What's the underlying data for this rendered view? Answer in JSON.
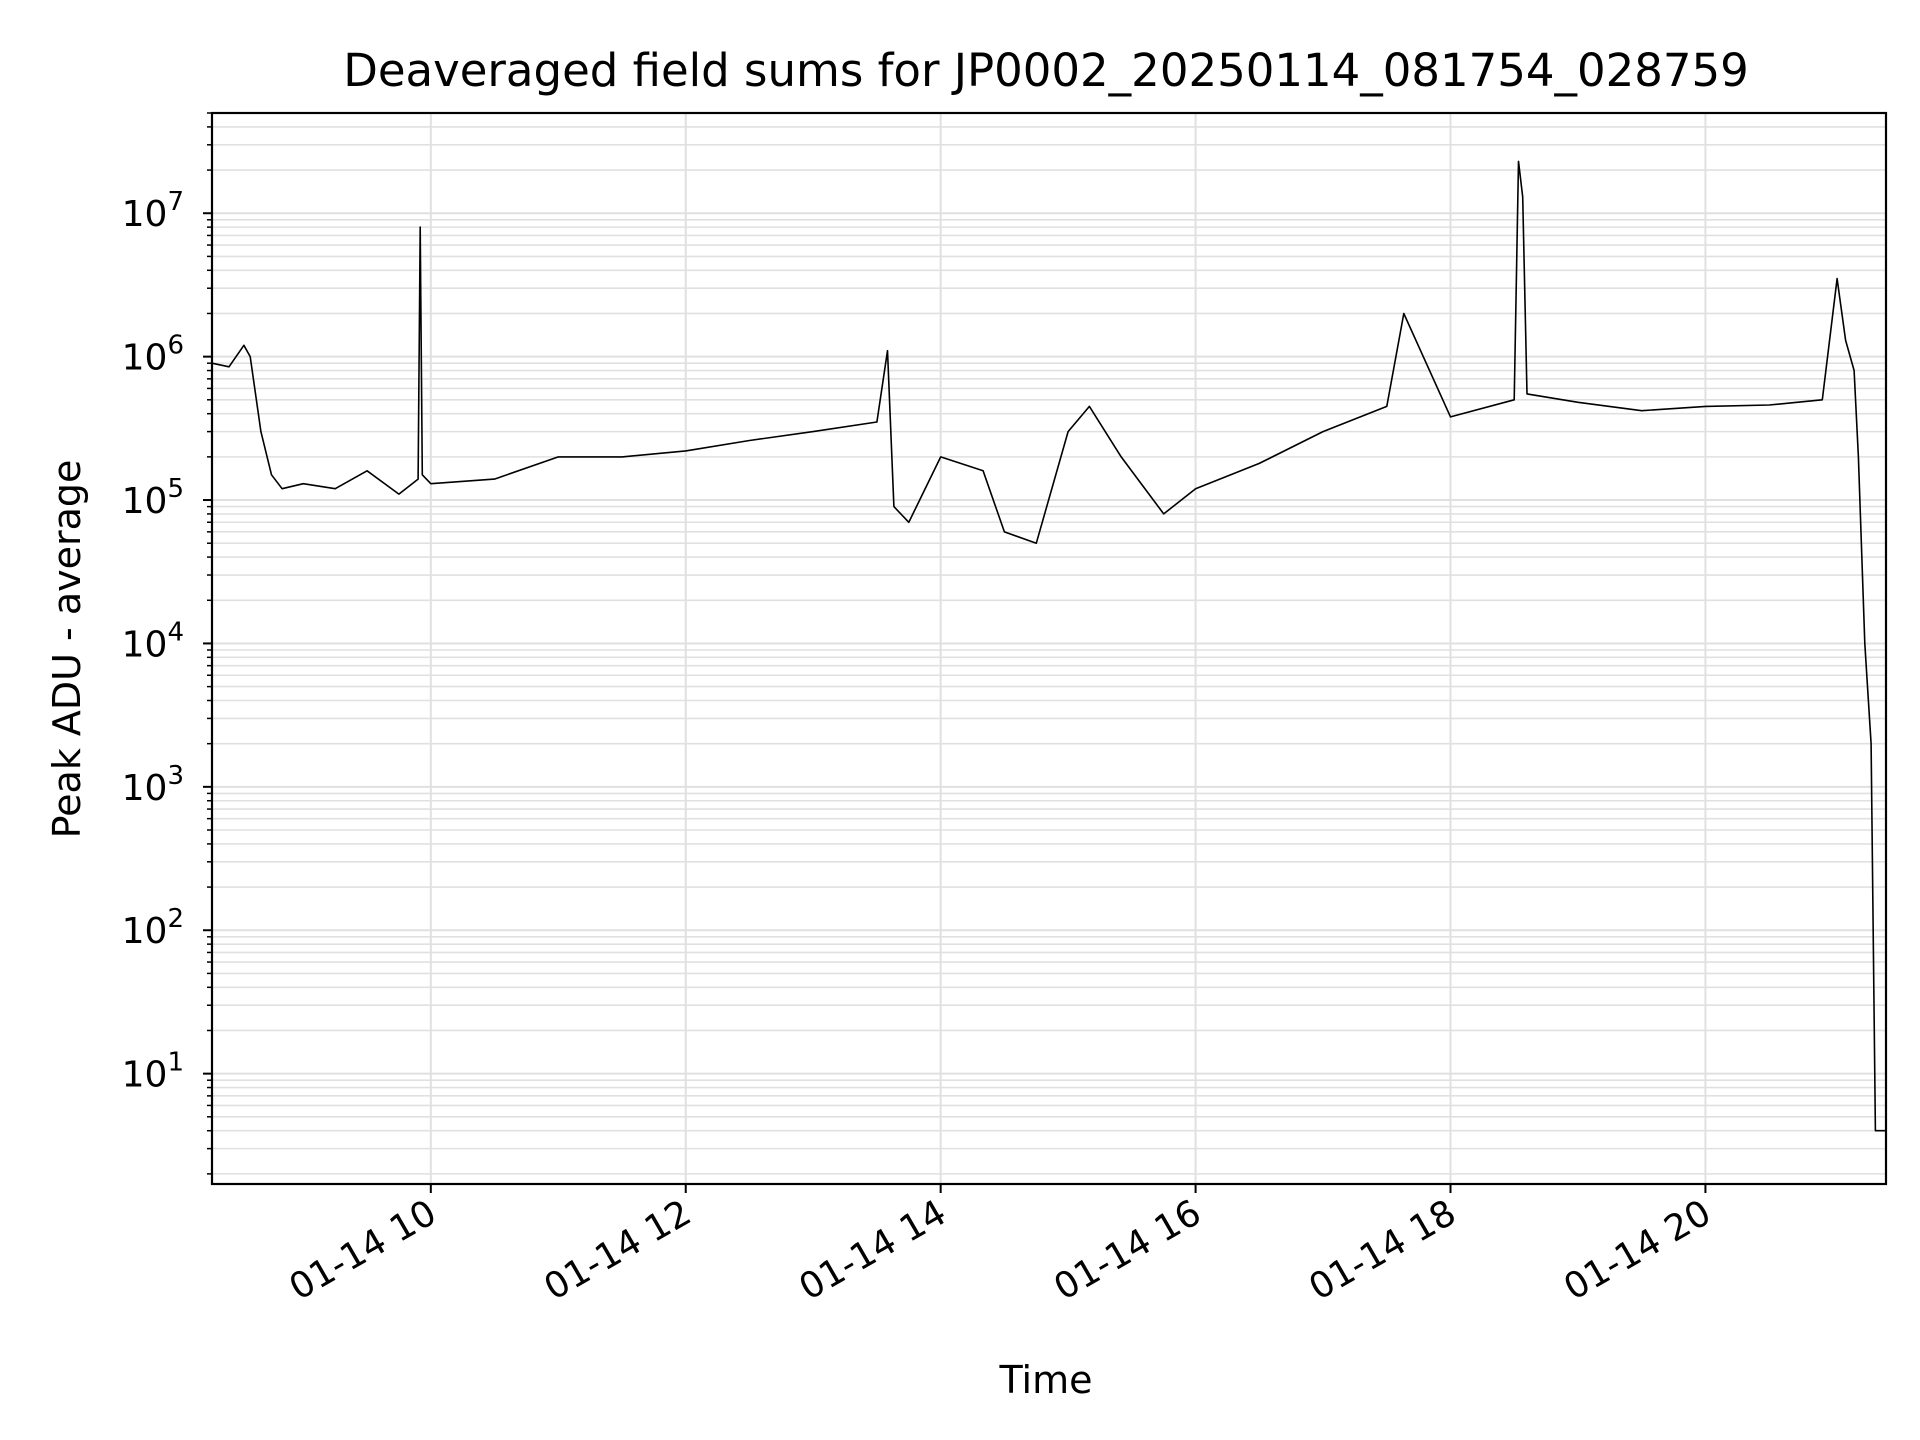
{
  "chart_data": {
    "type": "line",
    "title": "Deaveraged field sums for JP0002_20250114_081754_028759",
    "xlabel": "Time",
    "ylabel": "Peak ADU - average",
    "yscale": "log",
    "grid": true,
    "legend": "none",
    "line_color": "#000000",
    "grid_color": "#e0e0e0",
    "xlim": [
      "2025-01-14 08:17",
      "2025-01-14 21:25"
    ],
    "ylim": [
      1.7,
      50000000
    ],
    "x_ticks": [
      {
        "value": "2025-01-14 10:00",
        "label": "01-14 10"
      },
      {
        "value": "2025-01-14 12:00",
        "label": "01-14 12"
      },
      {
        "value": "2025-01-14 14:00",
        "label": "01-14 14"
      },
      {
        "value": "2025-01-14 16:00",
        "label": "01-14 16"
      },
      {
        "value": "2025-01-14 18:00",
        "label": "01-14 18"
      },
      {
        "value": "2025-01-14 20:00",
        "label": "01-14 20"
      }
    ],
    "y_ticks": [
      {
        "value": 10,
        "base": "10",
        "exp": "1"
      },
      {
        "value": 100,
        "base": "10",
        "exp": "2"
      },
      {
        "value": 1000,
        "base": "10",
        "exp": "3"
      },
      {
        "value": 10000,
        "base": "10",
        "exp": "4"
      },
      {
        "value": 100000,
        "base": "10",
        "exp": "5"
      },
      {
        "value": 1000000,
        "base": "10",
        "exp": "6"
      },
      {
        "value": 10000000,
        "base": "10",
        "exp": "7"
      }
    ],
    "series": [
      {
        "x": [
          "2025-01-14 08:17",
          "2025-01-14 08:25",
          "2025-01-14 08:32",
          "2025-01-14 08:35",
          "2025-01-14 08:40",
          "2025-01-14 08:45",
          "2025-01-14 08:50",
          "2025-01-14 09:00",
          "2025-01-14 09:15",
          "2025-01-14 09:30",
          "2025-01-14 09:45",
          "2025-01-14 09:54",
          "2025-01-14 09:55",
          "2025-01-14 09:56",
          "2025-01-14 10:00",
          "2025-01-14 10:30",
          "2025-01-14 11:00",
          "2025-01-14 11:30",
          "2025-01-14 12:00",
          "2025-01-14 12:30",
          "2025-01-14 13:00",
          "2025-01-14 13:30",
          "2025-01-14 13:35",
          "2025-01-14 13:38",
          "2025-01-14 13:45",
          "2025-01-14 14:00",
          "2025-01-14 14:20",
          "2025-01-14 14:30",
          "2025-01-14 14:45",
          "2025-01-14 15:00",
          "2025-01-14 15:10",
          "2025-01-14 15:25",
          "2025-01-14 15:45",
          "2025-01-14 16:00",
          "2025-01-14 16:30",
          "2025-01-14 17:00",
          "2025-01-14 17:30",
          "2025-01-14 17:38",
          "2025-01-14 18:00",
          "2025-01-14 18:30",
          "2025-01-14 18:32",
          "2025-01-14 18:34",
          "2025-01-14 18:36",
          "2025-01-14 19:00",
          "2025-01-14 19:30",
          "2025-01-14 20:00",
          "2025-01-14 20:30",
          "2025-01-14 20:55",
          "2025-01-14 21:02",
          "2025-01-14 21:06",
          "2025-01-14 21:10",
          "2025-01-14 21:12",
          "2025-01-14 21:15",
          "2025-01-14 21:18",
          "2025-01-14 21:20",
          "2025-01-14 21:25"
        ],
        "y": [
          900000,
          850000,
          1200000,
          1000000,
          300000,
          150000,
          120000,
          130000,
          120000,
          160000,
          110000,
          140000,
          8000000,
          150000,
          130000,
          140000,
          200000,
          200000,
          220000,
          260000,
          300000,
          350000,
          1100000,
          90000,
          70000,
          200000,
          160000,
          60000,
          50000,
          300000,
          450000,
          200000,
          80000,
          120000,
          180000,
          300000,
          450000,
          2000000,
          380000,
          500000,
          23000000,
          13000000,
          550000,
          480000,
          420000,
          450000,
          460000,
          500000,
          3500000,
          1300000,
          800000,
          200000,
          10000,
          2000,
          4,
          4
        ]
      }
    ]
  }
}
